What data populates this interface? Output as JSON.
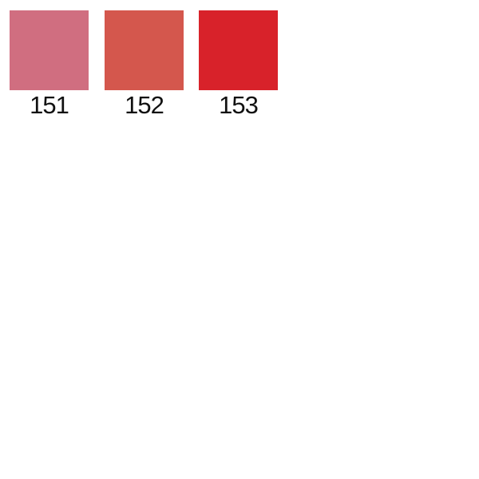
{
  "page": {
    "background": "#ffffff",
    "label_text_color": "#111111"
  },
  "swatches": [
    {
      "label": "151",
      "color": "#d06e80"
    },
    {
      "label": "152",
      "color": "#d4574d"
    },
    {
      "label": "153",
      "color": "#d8222a"
    }
  ]
}
